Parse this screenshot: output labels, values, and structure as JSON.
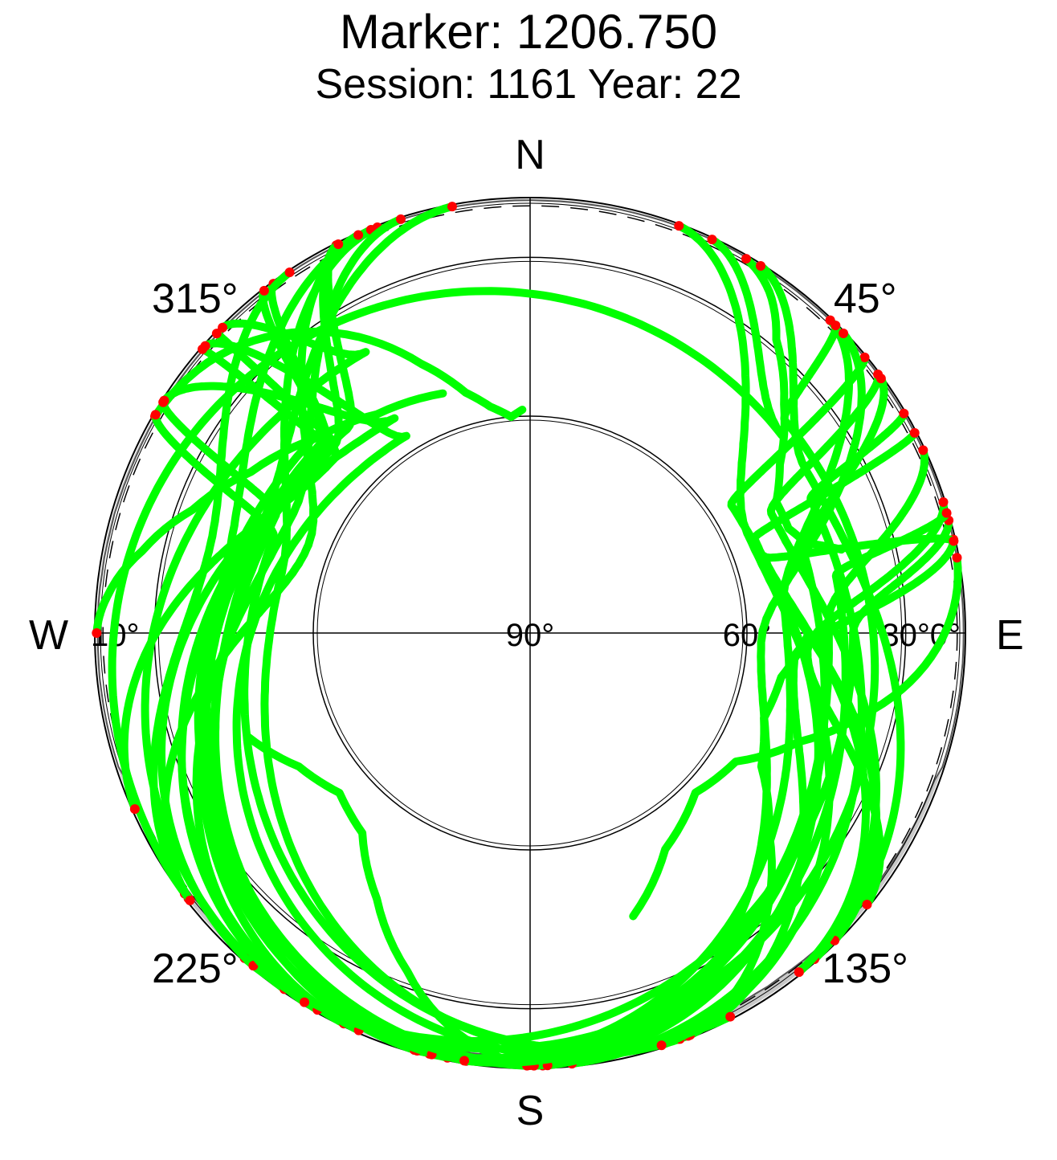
{
  "chart_data": {
    "type": "scatter",
    "projection": "polar-skyplot",
    "title": "Marker: 1206.750",
    "subtitle": "Session: 1161 Year: 22",
    "cardinals": {
      "north": "N",
      "south": "S",
      "east": "E",
      "west": "W"
    },
    "azimuth_labels": [
      {
        "azimuth": 45,
        "label": "45°"
      },
      {
        "azimuth": 135,
        "label": "135°"
      },
      {
        "azimuth": 225,
        "label": "225°"
      },
      {
        "azimuth": 315,
        "label": "315°"
      }
    ],
    "elevation_labels": [
      {
        "elevation": 0,
        "side": "east",
        "label": "0°"
      },
      {
        "elevation": 30,
        "side": "east",
        "label": "30°"
      },
      {
        "elevation": 60,
        "side": "east",
        "label": "60°"
      },
      {
        "elevation": 90,
        "side": "center",
        "label": "90°"
      },
      {
        "elevation": 10,
        "side": "west",
        "label": "10°"
      }
    ],
    "elevation_circles": [
      30,
      60
    ],
    "cutoff_elevation": 10,
    "point_colors": {
      "above_cutoff": "#00ff00",
      "below_cutoff": "#ff0000"
    },
    "colors": {
      "track": "#00ff00",
      "low": "#ff0000",
      "horizon_fill": "#c8c8c8",
      "horizon_fill_light": "#e6e6e6",
      "grid": "#000000"
    },
    "north_hole_elevation_min": 55,
    "tracks_sampled": [
      {
        "az": [
          300,
          310,
          320,
          330,
          338,
          345,
          350,
          355,
          358
        ],
        "el": [
          3,
          14,
          26,
          38,
          48,
          55,
          58,
          60,
          59
        ]
      },
      {
        "az": [
          30,
          35,
          40,
          48,
          56,
          62,
          68,
          72,
          75
        ],
        "el": [
          5,
          16,
          28,
          38,
          46,
          50,
          50,
          48,
          42
        ]
      },
      {
        "az": [
          180,
          190,
          200,
          210,
          220,
          230,
          240,
          250
        ],
        "el": [
          5,
          20,
          34,
          45,
          53,
          55,
          52,
          46
        ]
      },
      {
        "az": [
          160,
          150,
          140,
          130,
          120,
          110,
          100,
          90
        ],
        "el": [
          5,
          18,
          32,
          44,
          52,
          55,
          54,
          50
        ]
      },
      {
        "az": [
          270,
          275,
          282,
          290,
          300,
          312,
          325,
          340
        ],
        "el": [
          2,
          12,
          24,
          34,
          42,
          48,
          52,
          54
        ]
      },
      {
        "az": [
          80,
          88,
          96,
          104,
          112,
          122,
          134,
          148,
          160
        ],
        "el": [
          2,
          14,
          26,
          38,
          48,
          56,
          58,
          54,
          46
        ]
      }
    ]
  }
}
